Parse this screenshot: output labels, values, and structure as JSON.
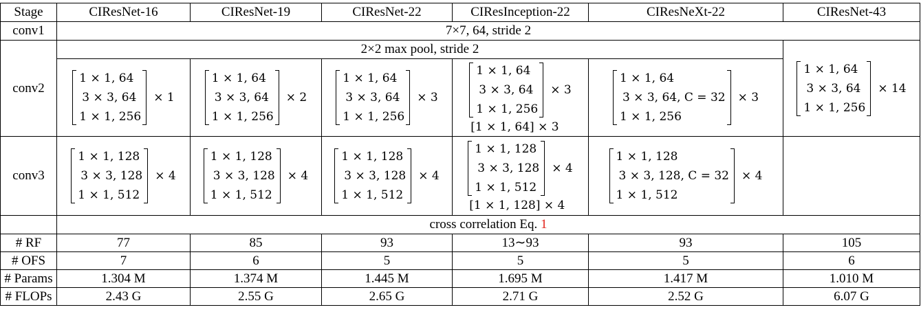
{
  "header": {
    "stage": "Stage",
    "models": [
      "CIResNet-16",
      "CIResNet-19",
      "CIResNet-22",
      "CIResInception-22",
      "CIResNeXt-22",
      "CIResNet-43"
    ]
  },
  "conv1": {
    "label": "conv1",
    "value": "7×7, 64, stride 2"
  },
  "maxpool": "2×2 max pool, stride 2",
  "conv2": {
    "label": "conv2",
    "blocks": [
      {
        "rows": [
          "1 × 1, 64",
          "3 × 3, 64",
          "1 × 1, 256"
        ],
        "repeat": "× 1",
        "extra": ""
      },
      {
        "rows": [
          "1 × 1, 64",
          "3 × 3, 64",
          "1 × 1, 256"
        ],
        "repeat": "× 2",
        "extra": ""
      },
      {
        "rows": [
          "1 × 1, 64",
          "3 × 3, 64",
          "1 × 1, 256"
        ],
        "repeat": "× 3",
        "extra": ""
      },
      {
        "rows": [
          "1 × 1, 64",
          "3 × 3, 64",
          "1 × 1, 256"
        ],
        "repeat": "× 3",
        "extra": "[1 × 1, 64] × 3"
      },
      {
        "rows": [
          "1 × 1, 64",
          "3 × 3, 64, C = 32",
          "1 × 1, 256"
        ],
        "repeat": "× 3",
        "extra": ""
      },
      {
        "rows": [
          "1 × 1, 64",
          "3 × 3, 64",
          "1 × 1, 256"
        ],
        "repeat": "× 14",
        "extra": ""
      }
    ]
  },
  "conv3": {
    "label": "conv3",
    "blocks": [
      {
        "rows": [
          "1 × 1, 128",
          "3 × 3, 128",
          "1 × 1, 512"
        ],
        "repeat": "× 4",
        "extra": ""
      },
      {
        "rows": [
          "1 × 1, 128",
          "3 × 3, 128",
          "1 × 1, 512"
        ],
        "repeat": "× 4",
        "extra": ""
      },
      {
        "rows": [
          "1 × 1, 128",
          "3 × 3, 128",
          "1 × 1, 512"
        ],
        "repeat": "× 4",
        "extra": ""
      },
      {
        "rows": [
          "1 × 1, 128",
          "3 × 3, 128",
          "1 × 1, 512"
        ],
        "repeat": "× 4",
        "extra": "[1 × 1, 128] × 4"
      },
      {
        "rows": [
          "1 × 1, 128",
          "3 × 3, 128, C = 32",
          "1 × 1, 512"
        ],
        "repeat": "× 4",
        "extra": ""
      }
    ]
  },
  "cross_corr": {
    "text": "cross correlation Eq.",
    "ref": "1",
    "ref_color": "#e2231a"
  },
  "metrics": [
    {
      "label": "# RF",
      "values": [
        "77",
        "85",
        "93",
        "13∼93",
        "93",
        "105"
      ]
    },
    {
      "label": "# OFS",
      "values": [
        "7",
        "6",
        "5",
        "5",
        "5",
        "6"
      ]
    },
    {
      "label": "# Params",
      "values": [
        "1.304 M",
        "1.374 M",
        "1.445 M",
        "1.695 M",
        "1.417 M",
        "1.010 M"
      ]
    },
    {
      "label": "# FLOPs",
      "values": [
        "2.43 G",
        "2.55 G",
        "2.65 G",
        "2.71 G",
        "2.52 G",
        "6.07 G"
      ]
    }
  ]
}
